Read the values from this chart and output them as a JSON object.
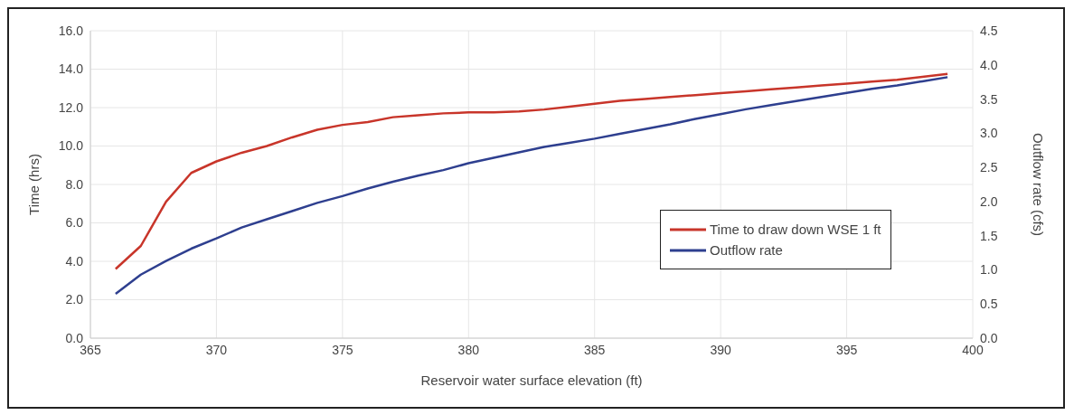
{
  "chart_data": {
    "type": "line",
    "xlabel": "Reservoir water surface elevation (ft)",
    "ylabel": "Time (hrs)",
    "y2label": "Outflow rate (cfs)",
    "x": [
      366,
      367,
      368,
      369,
      370,
      371,
      372,
      373,
      374,
      375,
      376,
      377,
      378,
      379,
      380,
      381,
      382,
      383,
      384,
      385,
      386,
      387,
      388,
      389,
      390,
      391,
      392,
      393,
      394,
      395,
      396,
      397,
      398,
      399
    ],
    "series": [
      {
        "name": "Time to draw down WSE 1 ft",
        "color": "#c8352a",
        "values": [
          3.6,
          4.8,
          7.1,
          8.6,
          9.2,
          9.65,
          10.0,
          10.45,
          10.85,
          11.1,
          11.25,
          11.5,
          11.6,
          11.7,
          11.75,
          11.75,
          11.8,
          11.9,
          12.05,
          12.2,
          12.35,
          12.45,
          12.55,
          12.65,
          12.75,
          12.85,
          12.95,
          13.05,
          13.15,
          13.25,
          13.35,
          13.45,
          13.6,
          13.75
        ]
      },
      {
        "name": "Outflow rate",
        "color": "#2e3f8f",
        "axis": "y2",
        "values": [
          0.65,
          0.93,
          1.13,
          1.31,
          1.46,
          1.62,
          1.74,
          1.86,
          1.98,
          2.08,
          2.19,
          2.29,
          2.38,
          2.46,
          2.56,
          2.64,
          2.72,
          2.8,
          2.86,
          2.92,
          2.99,
          3.06,
          3.13,
          3.21,
          3.28,
          3.35,
          3.41,
          3.47,
          3.53,
          3.59,
          3.65,
          3.7,
          3.76,
          3.82
        ]
      }
    ],
    "xlim": [
      365,
      400
    ],
    "xticks": [
      365,
      370,
      375,
      380,
      385,
      390,
      395,
      400
    ],
    "ylim": [
      0,
      16
    ],
    "yticks": [
      {
        "value": 0,
        "label": "0.0"
      },
      {
        "value": 2,
        "label": "2.0"
      },
      {
        "value": 4,
        "label": "4.0"
      },
      {
        "value": 6,
        "label": "6.0"
      },
      {
        "value": 8,
        "label": "8.0"
      },
      {
        "value": 10,
        "label": "10.0"
      },
      {
        "value": 12,
        "label": "12.0"
      },
      {
        "value": 14,
        "label": "14.0"
      },
      {
        "value": 16,
        "label": "16.0"
      }
    ],
    "y2lim": [
      0,
      4.5
    ],
    "y2ticks": [
      {
        "value": 0,
        "label": "0.0"
      },
      {
        "value": 0.5,
        "label": "0.5"
      },
      {
        "value": 1,
        "label": "1.0"
      },
      {
        "value": 1.5,
        "label": "1.5"
      },
      {
        "value": 2,
        "label": "2.0"
      },
      {
        "value": 2.5,
        "label": "2.5"
      },
      {
        "value": 3,
        "label": "3.0"
      },
      {
        "value": 3.5,
        "label": "3.5"
      },
      {
        "value": 4,
        "label": "4.0"
      },
      {
        "value": 4.5,
        "label": "4.5"
      }
    ],
    "grid": true,
    "legend": "bottom right",
    "marker": "none",
    "line_style": "solid"
  }
}
